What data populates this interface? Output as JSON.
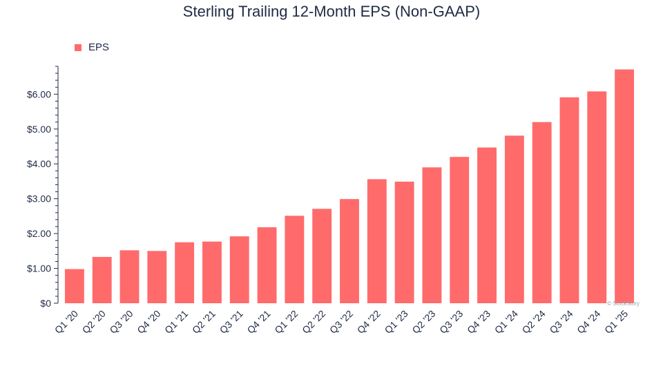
{
  "chart_data": {
    "type": "bar",
    "title": "Sterling Trailing 12-Month EPS (Non-GAAP)",
    "xlabel": "",
    "ylabel": "",
    "categories": [
      "Q1 '20",
      "Q2 '20",
      "Q3 '20",
      "Q4 '20",
      "Q1 '21",
      "Q2 '21",
      "Q3 '21",
      "Q4 '21",
      "Q1 '22",
      "Q2 '22",
      "Q3 '22",
      "Q4 '22",
      "Q1 '23",
      "Q2 '23",
      "Q3 '23",
      "Q4 '23",
      "Q1 '24",
      "Q2 '24",
      "Q3 '24",
      "Q4 '24",
      "Q1 '25"
    ],
    "series": [
      {
        "name": "EPS",
        "color": "#ff6b6b",
        "values": [
          0.98,
          1.33,
          1.52,
          1.5,
          1.75,
          1.77,
          1.92,
          2.18,
          2.51,
          2.71,
          2.99,
          3.56,
          3.49,
          3.9,
          4.2,
          4.47,
          4.81,
          5.2,
          5.91,
          6.08,
          6.71
        ]
      }
    ],
    "ylim": [
      0,
      6.8
    ],
    "yticks": [
      0,
      1,
      2,
      3,
      4,
      5,
      6
    ],
    "ytick_labels": [
      "$0",
      "$1.00",
      "$2.00",
      "$3.00",
      "$4.00",
      "$5.00",
      "$6.00"
    ],
    "grid": false,
    "legend_position": "top-left",
    "watermark": "© StockStory"
  }
}
